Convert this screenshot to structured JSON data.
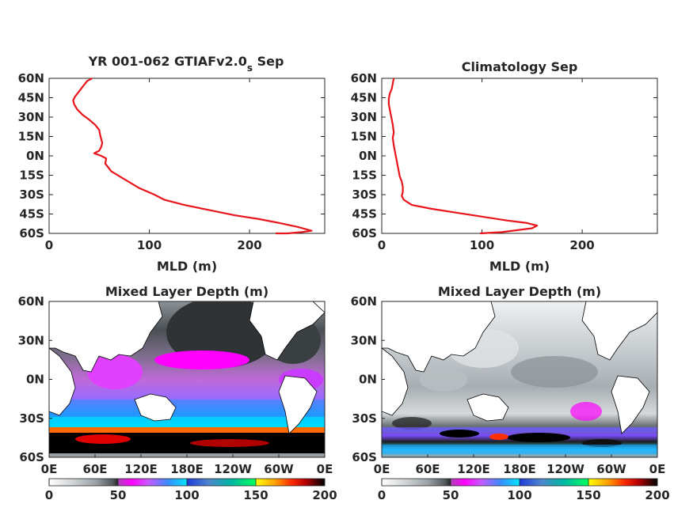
{
  "chart_data": [
    {
      "type": "line",
      "title": "YR 001-062 GTIAFv2.0",
      "title_subscript": "s",
      "title_suffix": " Sep",
      "xlabel": "MLD (m)",
      "ylabel": "",
      "xlim": [
        0,
        275
      ],
      "ylim": [
        -60,
        60
      ],
      "xticks": [
        0,
        100,
        200
      ],
      "yticks": [
        60,
        45,
        30,
        15,
        0,
        -15,
        -30,
        -45,
        -60
      ],
      "ytick_labels": [
        "60N",
        "45N",
        "30N",
        "15N",
        "0N",
        "15S",
        "30S",
        "45S",
        "60S"
      ],
      "grid": false,
      "line_color": "#e8141c",
      "series": [
        {
          "x": [
            43,
            38,
            34,
            30,
            26,
            24,
            25,
            28,
            33,
            40,
            46,
            50,
            51,
            53,
            52,
            50,
            45,
            52,
            57,
            56,
            62,
            75,
            90,
            105,
            115,
            135,
            160,
            185,
            210,
            230,
            248,
            262,
            252,
            238,
            226
          ],
          "y": [
            60,
            58,
            54,
            50,
            46,
            43,
            40,
            36,
            32,
            28,
            24,
            20,
            16,
            10,
            7,
            4,
            2,
            0,
            -2,
            -6,
            -12,
            -18,
            -25,
            -30,
            -34,
            -38,
            -42,
            -46,
            -49,
            -52,
            -55,
            -58,
            -59,
            -60,
            -60
          ]
        }
      ]
    },
    {
      "type": "line",
      "title": "Climatology Sep",
      "xlabel": "MLD (m)",
      "ylabel": "",
      "xlim": [
        0,
        275
      ],
      "ylim": [
        -60,
        60
      ],
      "xticks": [
        0,
        100,
        200
      ],
      "yticks": [
        60,
        45,
        30,
        15,
        0,
        -15,
        -30,
        -45,
        -60
      ],
      "ytick_labels": [
        "60N",
        "45N",
        "30N",
        "15N",
        "0N",
        "15S",
        "30S",
        "45S",
        "60S"
      ],
      "grid": false,
      "line_color": "#e8141c",
      "series": [
        {
          "x": [
            12,
            11,
            10,
            8,
            7,
            7,
            8,
            9,
            10,
            11,
            12,
            11,
            12,
            13,
            14,
            15,
            16,
            17,
            18,
            20,
            21,
            21,
            20,
            22,
            30,
            50,
            75,
            100,
            125,
            145,
            155,
            150,
            120,
            98
          ],
          "y": [
            60,
            56,
            52,
            48,
            44,
            40,
            36,
            32,
            28,
            24,
            18,
            14,
            8,
            4,
            0,
            -4,
            -8,
            -12,
            -16,
            -20,
            -24,
            -28,
            -31,
            -34,
            -38,
            -41,
            -44,
            -47,
            -50,
            -52,
            -54,
            -56,
            -59,
            -60
          ]
        }
      ]
    },
    {
      "type": "heatmap",
      "title": "Mixed Layer Depth (m)",
      "xtick_labels": [
        "0E",
        "60E",
        "120E",
        "180E",
        "120W",
        "60W",
        "0E"
      ],
      "ytick_labels": [
        "60N",
        "30N",
        "0N",
        "30S",
        "60S"
      ],
      "colorbar_ticks": [
        0,
        50,
        100,
        150,
        200
      ],
      "clim": [
        0,
        200
      ]
    },
    {
      "type": "heatmap",
      "title": "Mixed Layer Depth (m)",
      "xtick_labels": [
        "0E",
        "60E",
        "120E",
        "180E",
        "120W",
        "60W",
        "0E"
      ],
      "ytick_labels": [
        "60N",
        "30N",
        "0N",
        "30S",
        "60S"
      ],
      "colorbar_ticks": [
        0,
        50,
        100,
        150,
        200
      ],
      "clim": [
        0,
        200
      ]
    }
  ],
  "colors": {
    "colormap": [
      "#ffffff",
      "#d9dcdd",
      "#b3b8ba",
      "#8c9296",
      "#636a6e",
      "#3f4548",
      "#2c2c2c",
      "#b040b8",
      "#ff00ff",
      "#d84dff",
      "#9a66ff",
      "#3a7bff",
      "#19a8ff",
      "#00e5ff",
      "#1e9be8",
      "#1c2bd8",
      "#4f7fd0",
      "#00b9a0",
      "#00f07a",
      "#30ff40",
      "#ffff00",
      "#ffc400",
      "#ff8000",
      "#ff3000",
      "#e00000",
      "#9a0000",
      "#500000",
      "#000000"
    ]
  }
}
